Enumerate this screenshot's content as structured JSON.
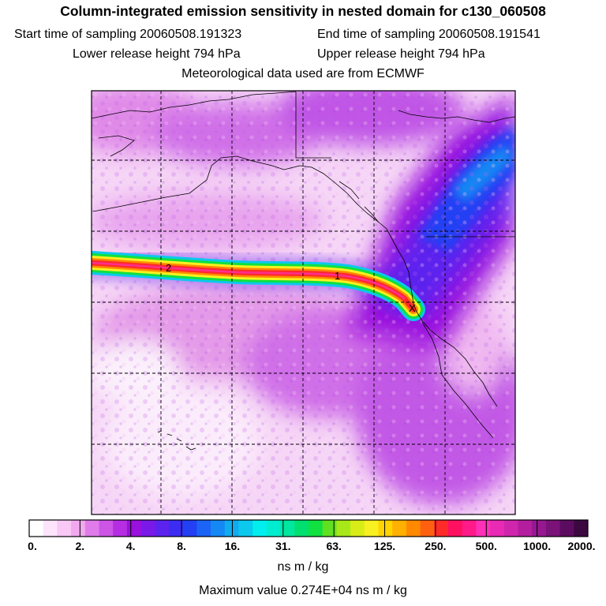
{
  "title": "Column-integrated emission sensitivity in nested domain for c130_060508",
  "sampling": {
    "start": "Start time of sampling 20060508.191323",
    "end": "End time of sampling 20060508.191541"
  },
  "release": {
    "lower": "Lower release height  794 hPa",
    "upper": "Upper release height  794 hPa"
  },
  "met_info": "Meteorological data used are from ECMWF",
  "map": {
    "day_markers": [
      "2",
      "1"
    ],
    "receptor_marker": "X"
  },
  "colorbar": {
    "labels": [
      "0.",
      "2.",
      "4.",
      "8.",
      "16.",
      "31.",
      "63.",
      "125.",
      "250.",
      "500.",
      "1000.",
      "2000."
    ],
    "colors": [
      "#ffffff",
      "#fde4fb",
      "#f9c8f5",
      "#f2a8ee",
      "#e07cea",
      "#cc55e6",
      "#b52ee2",
      "#9a10dd",
      "#7a18e8",
      "#5c22ee",
      "#3c2cf2",
      "#2340f4",
      "#1b64f6",
      "#1588f4",
      "#10acf0",
      "#0cc8ec",
      "#00eeee",
      "#00ecd0",
      "#00e8a0",
      "#00e070",
      "#10e040",
      "#60e020",
      "#a8e818",
      "#d8ec18",
      "#f8f020",
      "#ffd400",
      "#ffb000",
      "#ff8a00",
      "#ff6010",
      "#ff2a2a",
      "#ff1060",
      "#ff1a8a",
      "#ff30b8",
      "#e82ab4",
      "#d026ae",
      "#b41e9e",
      "#961890",
      "#7a1278",
      "#5c0c60",
      "#3c0840"
    ],
    "units": "ns m / kg"
  },
  "max_value": "Maximum value  0.274E+04 ns m / kg"
}
